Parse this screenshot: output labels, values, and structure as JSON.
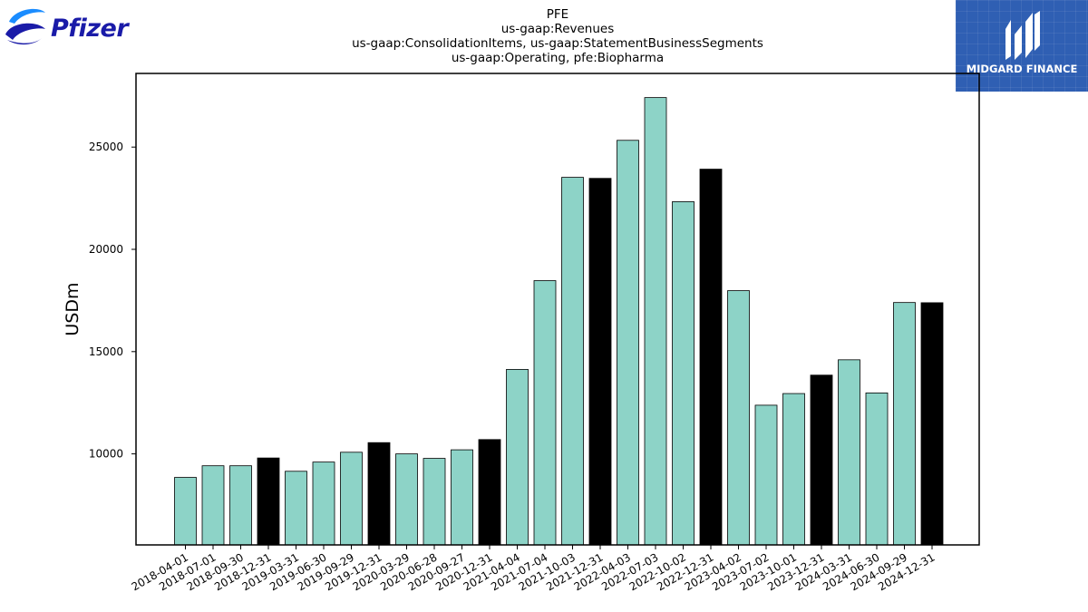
{
  "brand": {
    "left_logo_text": "Pfizer",
    "left_logo_icon": "pfizer-helix-icon",
    "right_logo_text": "MIDGARD FINANCE",
    "right_logo_icon": "midgard-m-icon",
    "right_logo_bg": "#2f5fb3"
  },
  "chart_data": {
    "type": "bar",
    "title_lines": [
      "PFE",
      "us-gaap:Revenues",
      "us-gaap:ConsolidationItems, us-gaap:StatementBusinessSegments",
      "us-gaap:Operating, pfe:Biopharma"
    ],
    "xlabel": "",
    "ylabel": "USDm",
    "ylim": [
      5550,
      28600
    ],
    "yticks": [
      10000,
      15000,
      20000,
      25000
    ],
    "grid": false,
    "colors": {
      "quarter": "#8dd3c7",
      "year_end": "#000000"
    },
    "categories": [
      "2018-04-01",
      "2018-07-01",
      "2018-09-30",
      "2018-12-31",
      "2019-03-31",
      "2019-06-30",
      "2019-09-29",
      "2019-12-31",
      "2020-03-29",
      "2020-06-28",
      "2020-09-27",
      "2020-12-31",
      "2021-04-04",
      "2021-07-04",
      "2021-10-03",
      "2021-12-31",
      "2022-04-03",
      "2022-07-03",
      "2022-10-02",
      "2022-12-31",
      "2023-04-02",
      "2023-07-02",
      "2023-10-01",
      "2023-12-31",
      "2024-03-31",
      "2024-06-30",
      "2024-09-29",
      "2024-12-31"
    ],
    "values": [
      8850,
      9420,
      9420,
      9800,
      9150,
      9600,
      10080,
      10550,
      10000,
      9780,
      10200,
      10700,
      14130,
      18470,
      23520,
      23470,
      25330,
      27420,
      22330,
      23920,
      17980,
      12380,
      12950,
      13850,
      14600,
      12980,
      17400,
      17390
    ],
    "year_end": [
      false,
      false,
      false,
      true,
      false,
      false,
      false,
      true,
      false,
      false,
      false,
      true,
      false,
      false,
      false,
      true,
      false,
      false,
      false,
      true,
      false,
      false,
      false,
      true,
      false,
      false,
      false,
      true
    ]
  }
}
